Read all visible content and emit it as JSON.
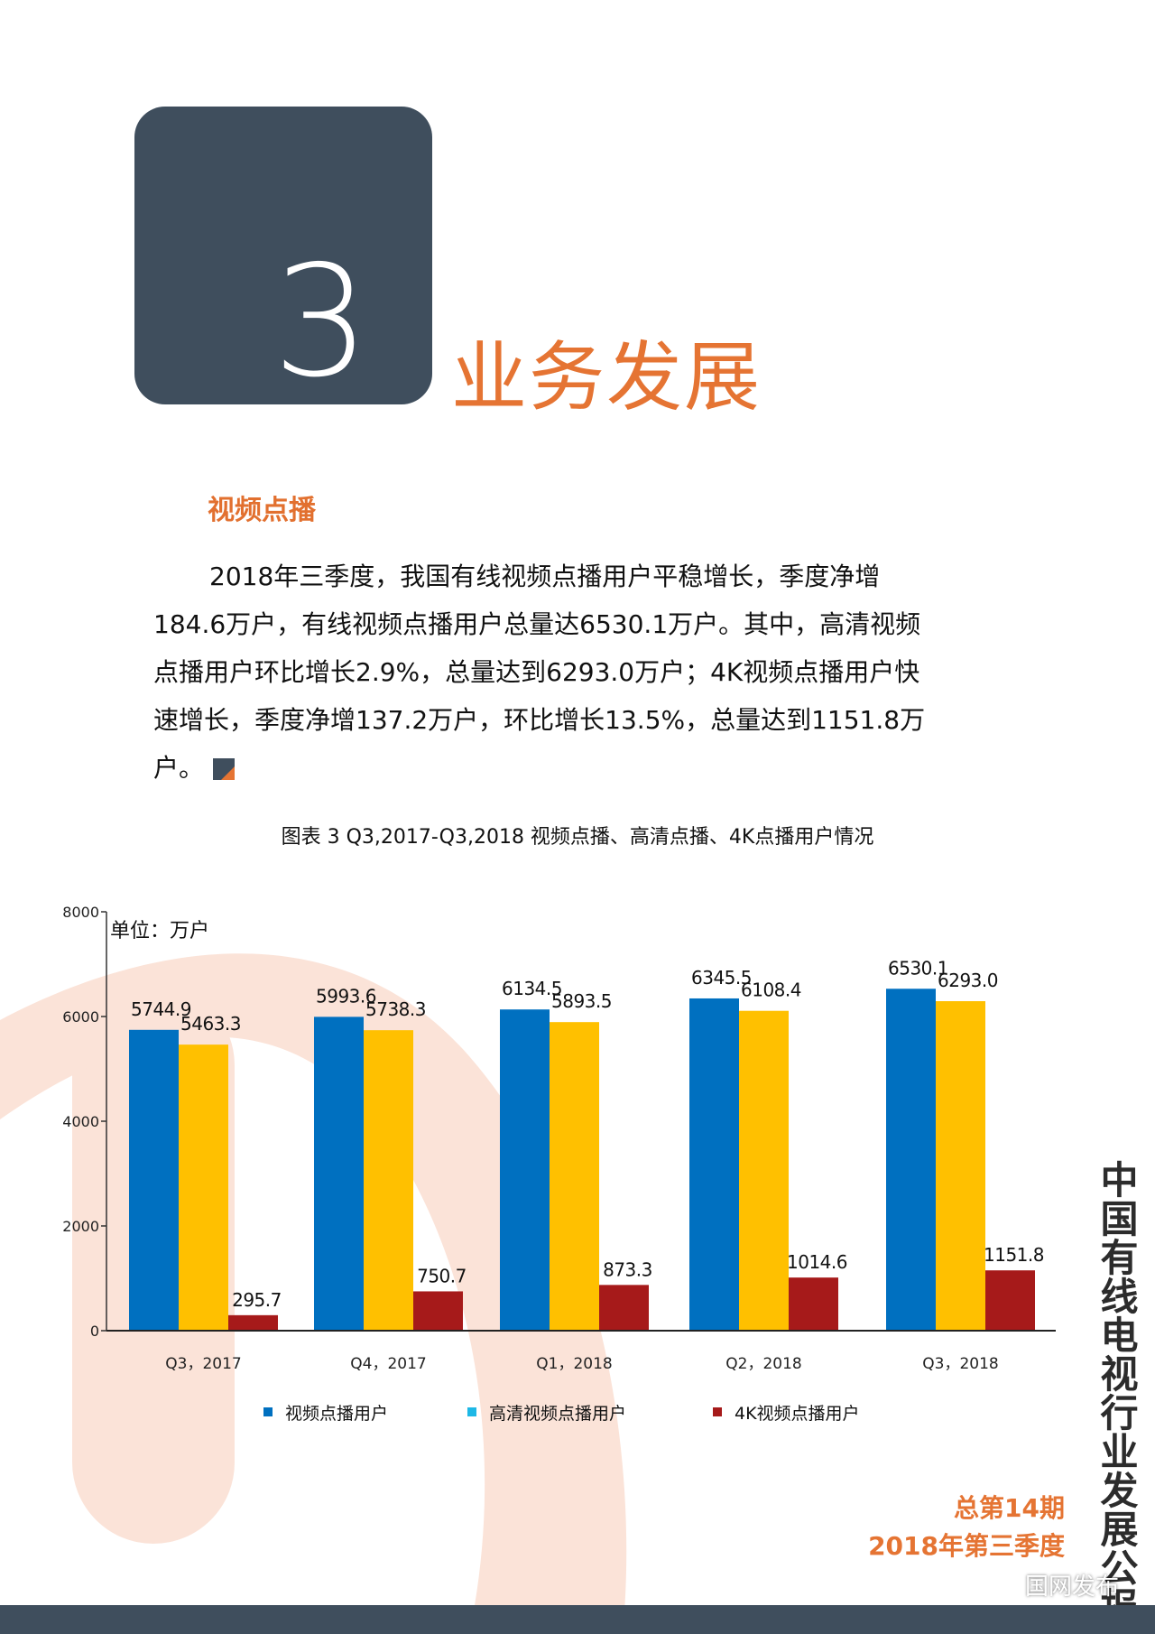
{
  "section": {
    "number": "3",
    "title": "业务发展"
  },
  "subheading": "视频点播",
  "body": {
    "lines": [
      "2018年三季度，我国有线视频点播用户平稳增长，季度净增",
      "184.6万户，有线视频点播用户总量达6530.1万户。其中，高清视频",
      "点播用户环比增长2.9%，总量达到6293.0万户；4K视频点播用户快",
      "速增长，季度净增137.2万户，环比增长13.5%，总量达到1151.8万",
      "户。"
    ]
  },
  "chart_caption": "图表 3 Q3,2017-Q3,2018 视频点播、高清点播、4K点播用户情况",
  "chart_data": {
    "type": "bar",
    "unit_label": "单位：万户",
    "categories": [
      "Q3，2017",
      "Q4，2017",
      "Q1，2018",
      "Q2，2018",
      "Q3，2018"
    ],
    "series": [
      {
        "name": "视频点播用户",
        "values": [
          5744.9,
          5993.6,
          6134.5,
          6345.5,
          6530.1
        ],
        "labels": [
          "5744.9",
          "5993.6",
          "6134.5",
          "6345.5",
          "6530.1"
        ],
        "color": "#0070c0",
        "legend_color": "#0070c0"
      },
      {
        "name": "高清视频点播用户",
        "values": [
          5463.3,
          5738.3,
          5893.5,
          6108.4,
          6293.0
        ],
        "labels": [
          "5463.3",
          "5738.3",
          "5893.5",
          "6108.4",
          "6293.0"
        ],
        "color": "#ffc000",
        "legend_color": "#1eb8e6"
      },
      {
        "name": "4K视频点播用户",
        "values": [
          295.7,
          750.7,
          873.3,
          1014.6,
          1151.8
        ],
        "labels": [
          "295.7",
          "750.7",
          "873.3",
          "1014.6",
          "1151.8"
        ],
        "color": "#a61a1a",
        "legend_color": "#a61a1a"
      }
    ],
    "y_ticks": [
      "0",
      "2000",
      "4000",
      "6000",
      "8000"
    ],
    "ylim": [
      0,
      8000
    ],
    "grid": false,
    "legend_placement": "bottom"
  },
  "side_title": "中国有线电视行业发展公报",
  "issue": "总第14期",
  "season": "2018年第三季度",
  "watermark": "国网发布",
  "colors": {
    "accent": "#e57433",
    "slate": "#3f4e5d",
    "bg_shape": "#fbe3d8"
  },
  "icons": {
    "end_mark": "corner-square-icon",
    "watermark": "wechat-icon"
  }
}
